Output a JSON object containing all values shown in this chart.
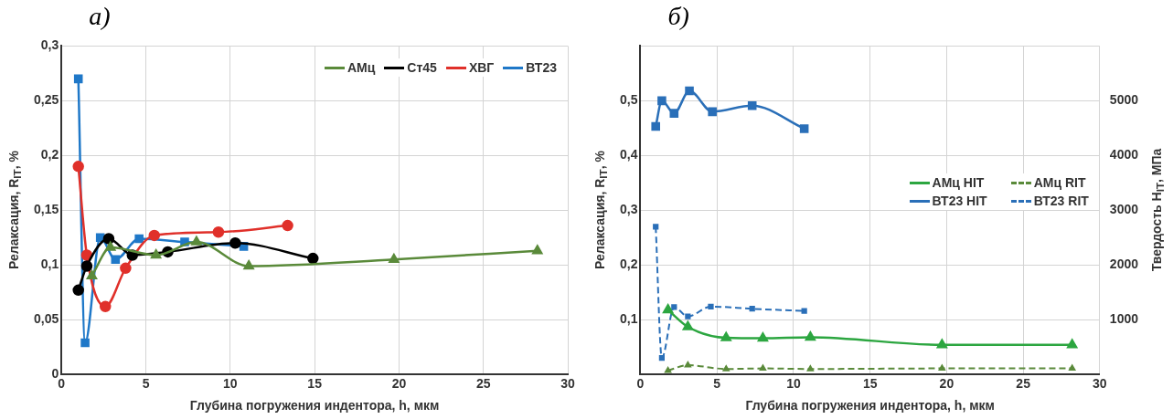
{
  "chart_data": [
    {
      "type": "line",
      "title": "а)",
      "xlabel": "Глубина погружения индентора, h, мкм",
      "ylabel": "Релаксация, R$_{IT}$, %",
      "xlim": [
        0,
        30
      ],
      "xticks": [
        0,
        5,
        10,
        15,
        20,
        25,
        30
      ],
      "ylim": [
        0,
        0.3
      ],
      "yticks": [
        0,
        {
          "value": 0.05,
          "label": "0,05"
        },
        {
          "value": 0.1,
          "label": "0,1"
        },
        {
          "value": 0.15,
          "label": "0,15"
        },
        {
          "value": 0.2,
          "label": "0,2"
        },
        {
          "value": 0.25,
          "label": "0,25"
        },
        {
          "value": 0.3,
          "label": "0,3"
        }
      ],
      "grid": true,
      "legend": "top right",
      "series": [
        {
          "name": "АМц",
          "color": "#5a8a3a",
          "marker": "triangle",
          "x": [
            1.8,
            2.9,
            5.6,
            8.0,
            11.1,
            19.7,
            28.2
          ],
          "values": [
            0.09,
            0.116,
            0.109,
            0.121,
            0.099,
            0.105,
            0.113
          ]
        },
        {
          "name": "Ст45",
          "color": "#000000",
          "marker": "circle",
          "x": [
            1.0,
            1.5,
            2.8,
            4.2,
            6.3,
            10.3,
            14.9
          ],
          "values": [
            0.077,
            0.099,
            0.124,
            0.109,
            0.112,
            0.12,
            0.106
          ]
        },
        {
          "name": "ХВГ",
          "color": "#e0302a",
          "marker": "circle",
          "x": [
            1.0,
            1.5,
            2.6,
            3.8,
            5.5,
            9.3,
            13.4
          ],
          "values": [
            0.19,
            0.109,
            0.062,
            0.097,
            0.127,
            0.13,
            0.136
          ]
        },
        {
          "name": "ВТ23",
          "color": "#1f78c8",
          "marker": "square",
          "x": [
            1.0,
            1.4,
            2.3,
            3.2,
            4.6,
            7.3,
            10.8
          ],
          "values": [
            0.27,
            0.029,
            0.125,
            0.105,
            0.124,
            0.121,
            0.117
          ]
        }
      ]
    },
    {
      "type": "line",
      "title": "б)",
      "xlabel": "Глубина погружения индентора, h, мкм",
      "ylabel": "Релаксация, R$_{IT}$, %",
      "y2label": "Твердость H$_{IT}$, МПа",
      "xlim": [
        0,
        30
      ],
      "xticks": [
        0,
        5,
        10,
        15,
        20,
        25,
        30
      ],
      "ylim": [
        0,
        0.6
      ],
      "yticks": [
        {
          "value": 0,
          "label": null
        },
        {
          "value": 0.1,
          "label": "0,1"
        },
        {
          "value": 0.2,
          "label": "0,2"
        },
        {
          "value": 0.3,
          "label": "0,3"
        },
        {
          "value": 0.4,
          "label": "0,4"
        },
        {
          "value": 0.5,
          "label": "0,5"
        },
        {
          "value": 0.6,
          "label": null
        }
      ],
      "y2lim": [
        0,
        6000
      ],
      "y2ticks": [
        1000,
        2000,
        3000,
        4000,
        5000
      ],
      "grid": true,
      "legend": "right",
      "series": [
        {
          "name": "АМц HIT",
          "color": "#2ca640",
          "marker": "triangle",
          "line_style": "solid",
          "axis": "y2",
          "x": [
            1.8,
            3.1,
            5.6,
            8.0,
            11.1,
            19.7,
            28.2
          ],
          "values": [
            1180,
            870,
            670,
            660,
            680,
            540,
            540
          ]
        },
        {
          "name": "АМц RIT",
          "color": "#5a8a3a",
          "marker": "triangle",
          "line_style": "dashed",
          "x": [
            1.8,
            3.1,
            5.6,
            8.0,
            11.1,
            19.7,
            28.2
          ],
          "values": [
            0.007,
            0.017,
            0.01,
            0.011,
            0.01,
            0.011,
            0.011
          ]
        },
        {
          "name": "ВТ23 HIT",
          "color": "#2a6fb8",
          "marker": "square",
          "line_style": "solid",
          "axis": "y2",
          "x": [
            1.0,
            1.4,
            2.2,
            3.2,
            4.7,
            7.3,
            10.7
          ],
          "values": [
            4530,
            5000,
            4770,
            5180,
            4800,
            4910,
            4490
          ]
        },
        {
          "name": "ВТ23 RIT",
          "color": "#2a6fb8",
          "marker": "square",
          "line_style": "dashed",
          "x": [
            1.0,
            1.4,
            2.2,
            3.1,
            4.6,
            7.3,
            10.7
          ],
          "values": [
            0.27,
            0.03,
            0.123,
            0.106,
            0.124,
            0.12,
            0.116
          ]
        }
      ]
    }
  ]
}
